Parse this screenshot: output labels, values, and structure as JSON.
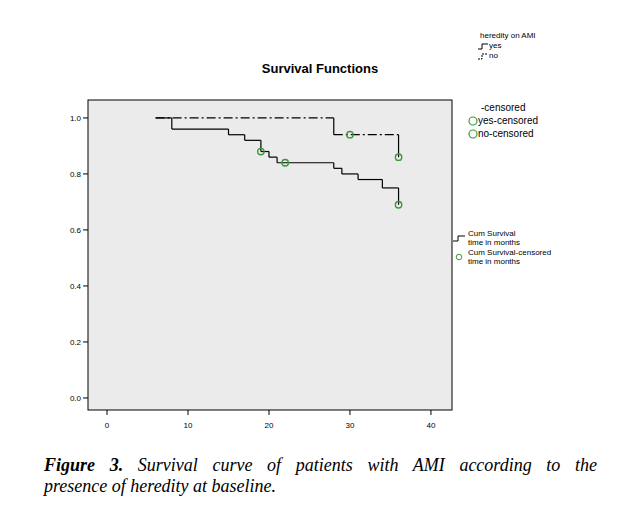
{
  "chart_data": {
    "type": "step",
    "title": "Survival Functions",
    "xlim": [
      -2.35,
      42.6
    ],
    "ylim": [
      -0.043,
      1.064
    ],
    "xticks": [
      0,
      10,
      20,
      30,
      40
    ],
    "yticks": [
      {
        "value": 0,
        "label": "0.0"
      },
      0.2,
      0.4,
      0.6,
      0.8,
      {
        "value": 1,
        "label": "1.0"
      }
    ],
    "grid": false,
    "legend_title": "heredity on AMI",
    "series": [
      {
        "name": "yes",
        "color": "#000000",
        "line_style": "solid",
        "x": [
          6,
          8,
          15,
          17,
          19,
          20,
          21,
          28,
          29,
          31,
          34,
          36
        ],
        "values": [
          1.0,
          0.96,
          0.94,
          0.92,
          0.88,
          0.86,
          0.84,
          0.82,
          0.8,
          0.78,
          0.75,
          0.69
        ],
        "censored_x": [
          19,
          22,
          36
        ],
        "censored_values": [
          0.88,
          0.84,
          0.69
        ]
      },
      {
        "name": "no",
        "color": "#000000",
        "line_style": "dashdot",
        "x": [
          6,
          28,
          36
        ],
        "values": [
          1.0,
          0.94,
          0.86
        ],
        "censored_x": [
          30,
          36
        ],
        "censored_values": [
          0.94,
          0.86
        ]
      }
    ],
    "censor_color": "#3a9a3a",
    "censor_legend": [
      "-censored",
      "yes-censored",
      "no-censored"
    ],
    "line_legend": [
      [
        "Cum Survival",
        "time in months"
      ],
      [
        "Cum Survival-censored",
        "time in months"
      ]
    ],
    "caption": {
      "label": "Figure 3.",
      "lines": [
        "Survival curve of patients with AMI according to the",
        "presence of heredity at baseline."
      ]
    }
  }
}
